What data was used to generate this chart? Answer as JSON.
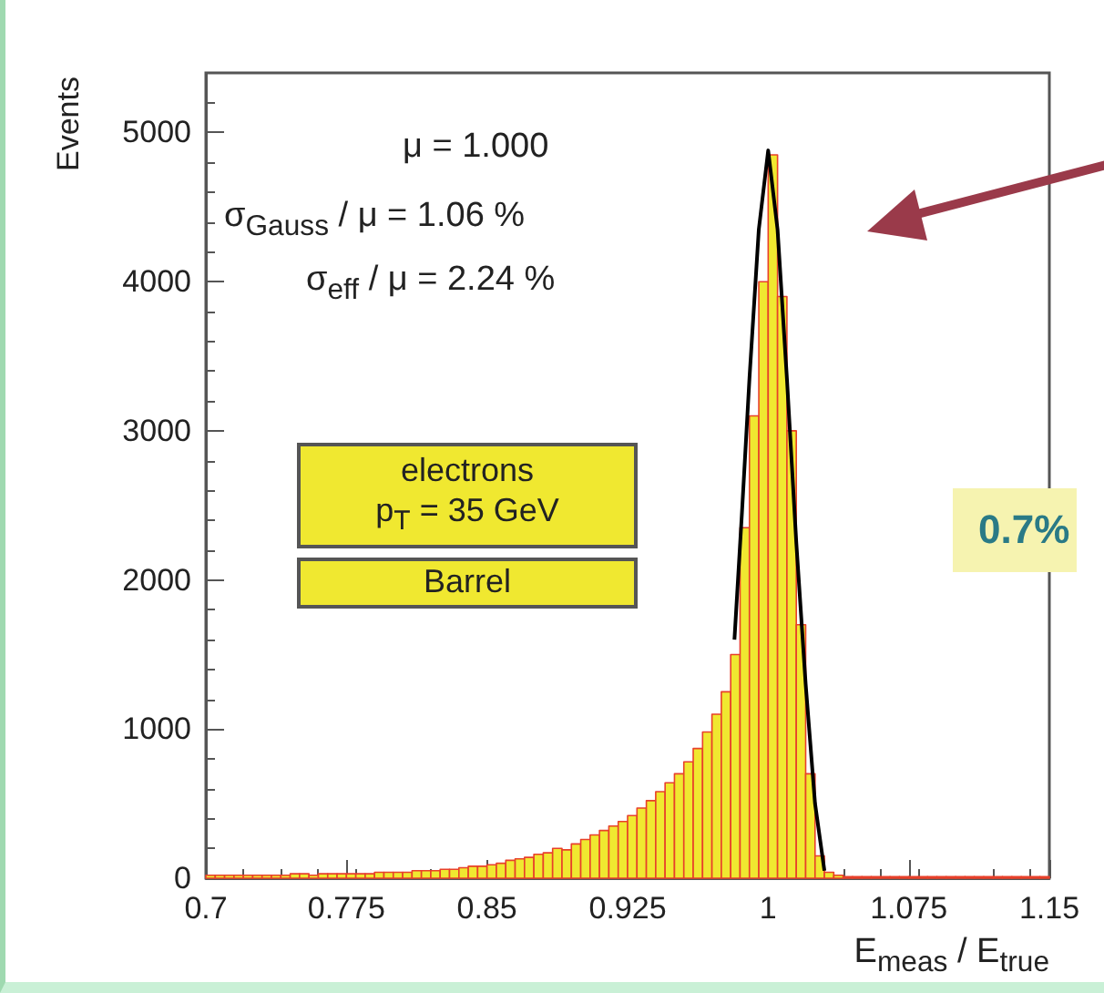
{
  "chart_data": {
    "type": "histogram",
    "xlabel": "E$_{meas}$ / E$_{true}$",
    "ylabel": "Events",
    "xlim": [
      0.7,
      1.15
    ],
    "xticks": [
      0.7,
      0.775,
      0.85,
      0.925,
      1,
      1.075,
      1.15
    ],
    "ylim": [
      0,
      5400
    ],
    "yticks": [
      0,
      1000,
      2000,
      3000,
      4000,
      5000
    ],
    "grid": false,
    "annotations": [
      "μ = 1.000",
      "σ$_{Gauss}$ / μ = 1.06 %",
      "σ$_{eff}$ / μ = 2.24 %",
      "electrons",
      "p$_{T}$ = 35 GeV",
      "Barrel",
      "0.7%"
    ],
    "bins": [
      0.7,
      0.705,
      0.71,
      0.715,
      0.72,
      0.725,
      0.73,
      0.735,
      0.74,
      0.745,
      0.75,
      0.755,
      0.76,
      0.765,
      0.77,
      0.775,
      0.78,
      0.785,
      0.79,
      0.795,
      0.8,
      0.805,
      0.81,
      0.815,
      0.82,
      0.825,
      0.83,
      0.835,
      0.84,
      0.845,
      0.85,
      0.855,
      0.86,
      0.865,
      0.87,
      0.875,
      0.88,
      0.885,
      0.89,
      0.895,
      0.9,
      0.905,
      0.91,
      0.915,
      0.92,
      0.925,
      0.93,
      0.935,
      0.94,
      0.945,
      0.95,
      0.955,
      0.96,
      0.965,
      0.97,
      0.975,
      0.98,
      0.985,
      0.99,
      0.995,
      1,
      1.005,
      1.01,
      1.015,
      1.02,
      1.025,
      1.03,
      1.035,
      1.04,
      1.045,
      1.05,
      1.055,
      1.06,
      1.065,
      1.07,
      1.075,
      1.08,
      1.085,
      1.09,
      1.095,
      1.1,
      1.105,
      1.11,
      1.115,
      1.12,
      1.125,
      1.13,
      1.135,
      1.14,
      1.145,
      1.15
    ],
    "series": [
      {
        "type": "histogram",
        "color": "#f0e830",
        "values": [
          20,
          20,
          20,
          20,
          20,
          20,
          20,
          20,
          20,
          30,
          30,
          20,
          30,
          30,
          30,
          30,
          30,
          30,
          40,
          40,
          40,
          40,
          50,
          50,
          50,
          60,
          60,
          70,
          80,
          80,
          90,
          100,
          120,
          130,
          140,
          160,
          170,
          200,
          190,
          230,
          260,
          290,
          320,
          350,
          380,
          420,
          470,
          520,
          580,
          640,
          700,
          780,
          870,
          980,
          1100,
          1250,
          1500,
          2350,
          3100,
          4000,
          4850,
          3900,
          3000,
          1700,
          700,
          150,
          40,
          20,
          10,
          10,
          10,
          10,
          10,
          10,
          10,
          10,
          10,
          10,
          10,
          10,
          10,
          10,
          10,
          10,
          10,
          10,
          10,
          10,
          10,
          10
        ]
      },
      {
        "type": "line",
        "color": "#000000",
        "x": [
          0.982,
          0.986,
          0.99,
          0.995,
          1.0,
          1.005,
          1.01,
          1.015,
          1.02,
          1.025,
          1.03
        ],
        "values": [
          1600,
          2450,
          3350,
          4350,
          4880,
          4350,
          3350,
          2250,
          1300,
          500,
          50
        ]
      }
    ]
  }
}
